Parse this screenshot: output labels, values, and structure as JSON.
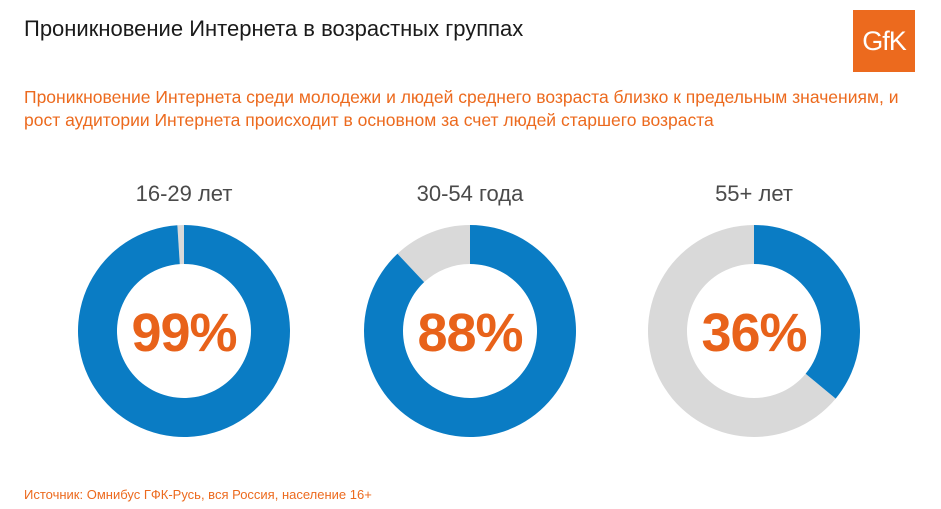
{
  "title": "Проникновение Интернета в возрастных группах",
  "logo": "GfK",
  "subtitle": "Проникновение Интернета среди молодежи и людей среднего возраста близко к предельным значениям, и рост аудитории Интернета происходит в основном за счет людей старшего возраста",
  "source": "Источник: Омнибус ГФК-Русь, вся Россия, население 16+",
  "colors": {
    "filled": "#0a7cc4",
    "remainder": "#d9d9d9",
    "accent": "#e8621a"
  },
  "chart_data": {
    "type": "pie",
    "categories": [
      "16-29 лет",
      "30-54 года",
      "55+ лет"
    ],
    "values": [
      99,
      88,
      36
    ],
    "labels": [
      "99%",
      "88%",
      "36%"
    ],
    "unit": "%",
    "max": 100
  }
}
